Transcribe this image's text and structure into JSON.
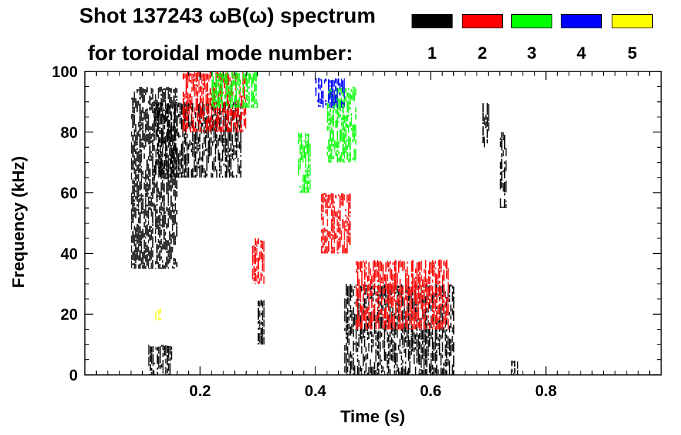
{
  "chart_data": {
    "type": "heatmap",
    "title_line1": "Shot 137243 ωB(ω) spectrum",
    "title_line2": "for toroidal mode number:",
    "xlabel": "Time (s)",
    "ylabel": "Frequency (kHz)",
    "xlim": [
      0.0,
      1.0
    ],
    "ylim": [
      0,
      100
    ],
    "x_ticks": [
      0.2,
      0.4,
      0.6,
      0.8
    ],
    "x_tick_labels": [
      "0.2",
      "0.4",
      "0.6",
      "0.8"
    ],
    "y_ticks": [
      0,
      20,
      40,
      60,
      80,
      100
    ],
    "y_tick_labels": [
      "0",
      "20",
      "40",
      "60",
      "80",
      "100"
    ],
    "legend": [
      {
        "label": "1",
        "color": "#000000"
      },
      {
        "label": "2",
        "color": "#ff0000"
      },
      {
        "label": "3",
        "color": "#00ff00"
      },
      {
        "label": "4",
        "color": "#0000ff"
      },
      {
        "label": "5",
        "color": "#ffff00"
      }
    ],
    "series": [
      {
        "name": "n=1",
        "color": "#000000",
        "regions": [
          {
            "t": [
              0.08,
              0.16
            ],
            "f": [
              35,
              95
            ]
          },
          {
            "t": [
              0.12,
              0.27
            ],
            "f": [
              65,
              90
            ]
          },
          {
            "t": [
              0.11,
              0.15
            ],
            "f": [
              0,
              10
            ]
          },
          {
            "t": [
              0.3,
              0.31
            ],
            "f": [
              10,
              25
            ]
          },
          {
            "t": [
              0.45,
              0.64
            ],
            "f": [
              0,
              30
            ]
          },
          {
            "t": [
              0.69,
              0.7
            ],
            "f": [
              75,
              90
            ]
          },
          {
            "t": [
              0.72,
              0.73
            ],
            "f": [
              55,
              80
            ]
          },
          {
            "t": [
              0.74,
              0.75
            ],
            "f": [
              0,
              5
            ]
          }
        ]
      },
      {
        "name": "n=2",
        "color": "#ff0000",
        "regions": [
          {
            "t": [
              0.17,
              0.28
            ],
            "f": [
              80,
              100
            ]
          },
          {
            "t": [
              0.29,
              0.31
            ],
            "f": [
              30,
              45
            ]
          },
          {
            "t": [
              0.41,
              0.46
            ],
            "f": [
              40,
              60
            ]
          },
          {
            "t": [
              0.47,
              0.63
            ],
            "f": [
              15,
              38
            ]
          }
        ]
      },
      {
        "name": "n=3",
        "color": "#00ff00",
        "regions": [
          {
            "t": [
              0.22,
              0.3
            ],
            "f": [
              88,
              100
            ]
          },
          {
            "t": [
              0.37,
              0.39
            ],
            "f": [
              60,
              80
            ]
          },
          {
            "t": [
              0.42,
              0.47
            ],
            "f": [
              70,
              95
            ]
          }
        ]
      },
      {
        "name": "n=4",
        "color": "#0000ff",
        "regions": [
          {
            "t": [
              0.4,
              0.45
            ],
            "f": [
              88,
              98
            ]
          }
        ]
      },
      {
        "name": "n=5",
        "color": "#ffff00",
        "regions": [
          {
            "t": [
              0.12,
              0.13
            ],
            "f": [
              18,
              22
            ]
          }
        ]
      }
    ]
  }
}
